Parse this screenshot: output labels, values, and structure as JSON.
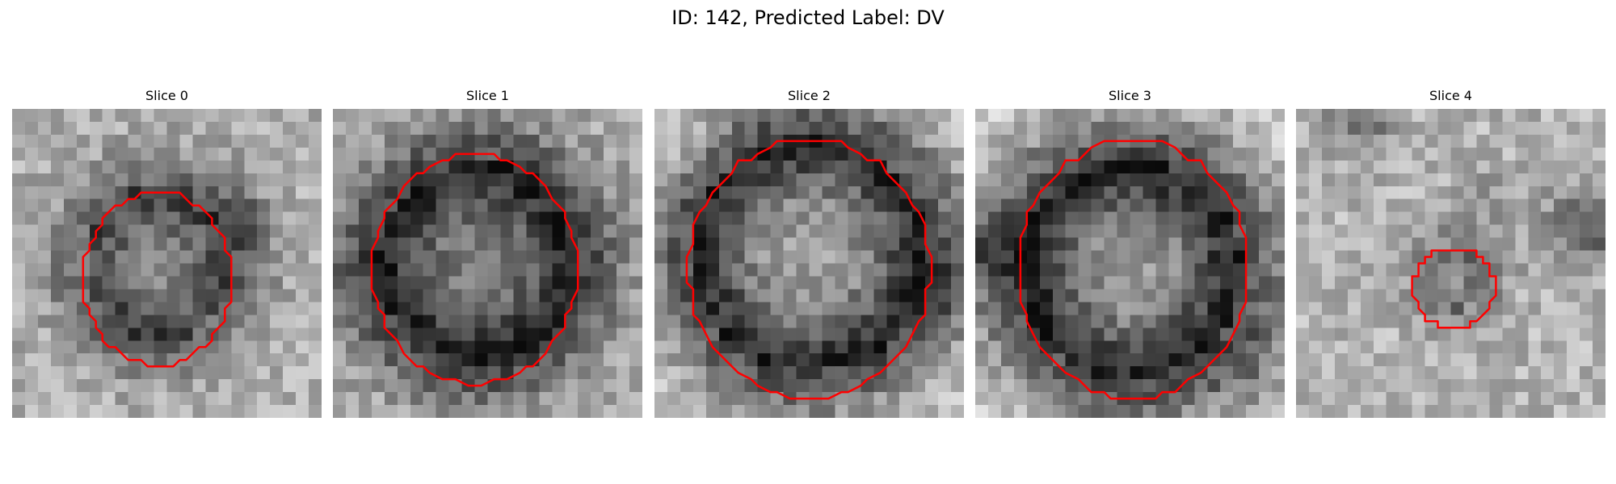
{
  "figure": {
    "title": "ID: 142, Predicted Label: DV"
  },
  "panels": [
    {
      "title": "Slice 0",
      "ring_color": "#ff0000"
    },
    {
      "title": "Slice 1",
      "ring_color": "#ff0000"
    },
    {
      "title": "Slice 2",
      "ring_color": "#ff0000"
    },
    {
      "title": "Slice 3",
      "ring_color": "#ff0000"
    },
    {
      "title": "Slice 4",
      "ring_color": "#ff0000"
    }
  ]
}
